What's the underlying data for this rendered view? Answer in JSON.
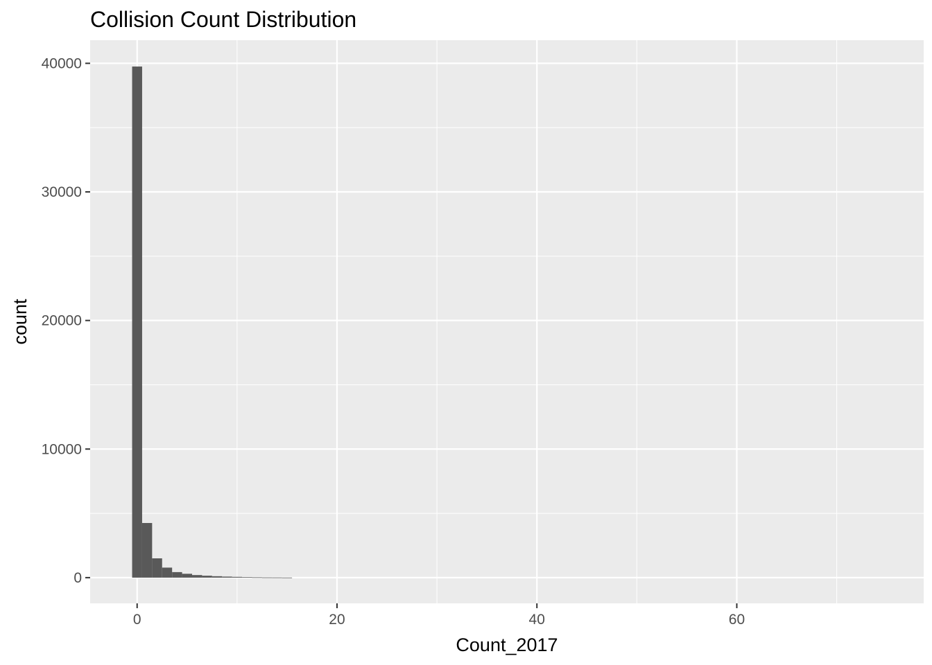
{
  "chart_data": {
    "type": "bar",
    "title": "Collision Count Distribution",
    "xlabel": "Count_2017",
    "ylabel": "count",
    "xlim": [
      -4.7,
      78.7
    ],
    "ylim": [
      -2000,
      41800
    ],
    "x_ticks": [
      0,
      20,
      40,
      60
    ],
    "y_ticks": [
      0,
      10000,
      20000,
      30000,
      40000
    ],
    "x_tick_labels": [
      "0",
      "20",
      "40",
      "60"
    ],
    "y_tick_labels": [
      "0",
      "10000",
      "20000",
      "30000",
      "40000"
    ],
    "bin_width": 1,
    "bins": [
      {
        "x": 0,
        "count": 39750
      },
      {
        "x": 1,
        "count": 4250
      },
      {
        "x": 2,
        "count": 1500
      },
      {
        "x": 3,
        "count": 780
      },
      {
        "x": 4,
        "count": 430
      },
      {
        "x": 5,
        "count": 300
      },
      {
        "x": 6,
        "count": 200
      },
      {
        "x": 7,
        "count": 150
      },
      {
        "x": 8,
        "count": 110
      },
      {
        "x": 9,
        "count": 80
      },
      {
        "x": 10,
        "count": 60
      },
      {
        "x": 11,
        "count": 40
      },
      {
        "x": 12,
        "count": 25
      },
      {
        "x": 13,
        "count": 15
      },
      {
        "x": 14,
        "count": 12
      },
      {
        "x": 15,
        "count": 6
      }
    ],
    "grid": true,
    "colors": {
      "panel": "#ebebeb",
      "grid": "#ffffff",
      "bar": "#595959"
    }
  }
}
